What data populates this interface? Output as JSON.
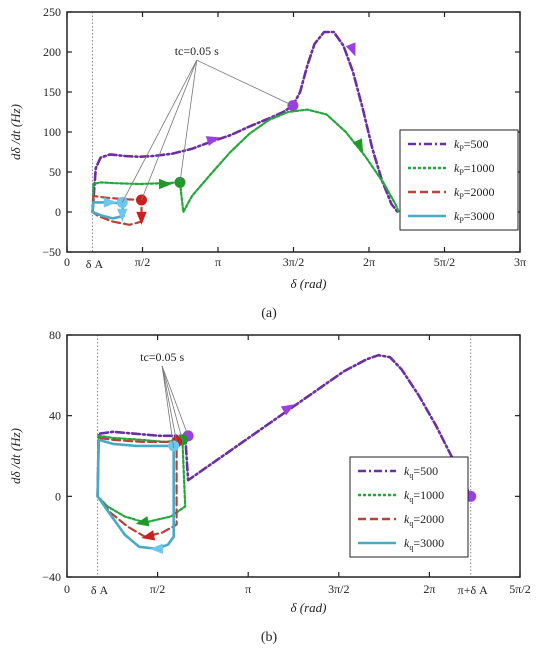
{
  "colors": {
    "k500": "#6a2fa0",
    "k1000": "#22a83a",
    "k2000": "#b5453a",
    "k3000": "#4aaac4",
    "k500_marker": "#9a40e0",
    "k1000_marker": "#1e9a2a",
    "k2000_marker": "#cc1f1f",
    "k3000_marker": "#6cc6ee",
    "guide": "#888888"
  },
  "chart_data": [
    {
      "panel": "(a)",
      "type": "line",
      "ylabel": "dδ /dt (Hz)",
      "xlabel": "δ  (rad)",
      "xlim": [
        0,
        9.42478
      ],
      "ylim": [
        -50,
        250
      ],
      "xticks": [
        {
          "value": 0,
          "label": "0"
        },
        {
          "value": 1.5708,
          "label": "π/2"
        },
        {
          "value": 3.14159,
          "label": "π"
        },
        {
          "value": 4.71239,
          "label": "3π/2"
        },
        {
          "value": 6.28319,
          "label": "2π"
        },
        {
          "value": 7.85398,
          "label": "5π/2"
        },
        {
          "value": 9.42478,
          "label": "3π"
        }
      ],
      "yticks": [
        -50,
        0,
        50,
        100,
        150,
        200,
        250
      ],
      "vline": {
        "x": 0.53,
        "label": "δ A"
      },
      "annotation": {
        "text": "tc=0.05 s",
        "anchor": {
          "x": 2.7,
          "y": 196
        },
        "targets": [
          {
            "x": 1.15,
            "y": 12
          },
          {
            "x": 1.55,
            "y": 15
          },
          {
            "x": 2.35,
            "y": 37
          },
          {
            "x": 4.7,
            "y": 133
          }
        ]
      },
      "legend": {
        "position": "right",
        "entries": [
          {
            "prefix": "k",
            "sub": "P",
            "suffix": "=500",
            "series": "k500",
            "dash": "8,3,2,3"
          },
          {
            "prefix": "k",
            "sub": "P",
            "suffix": "=1000",
            "series": "k1000",
            "dash": "3,2"
          },
          {
            "prefix": "k",
            "sub": "P",
            "suffix": "=2000",
            "series": "k2000",
            "dash": "8,4"
          },
          {
            "prefix": "k",
            "sub": "P",
            "suffix": "=3000",
            "series": "k3000",
            "dash": ""
          }
        ]
      },
      "series": [
        {
          "key": "k500",
          "width": 2.6,
          "points": [
            [
              0.53,
              0
            ],
            [
              0.6,
              55
            ],
            [
              0.7,
              68
            ],
            [
              0.9,
              72
            ],
            [
              1.2,
              70
            ],
            [
              1.5,
              69
            ],
            [
              1.8,
              70
            ],
            [
              2.2,
              73
            ],
            [
              2.6,
              79
            ],
            [
              3.0,
              88
            ],
            [
              3.4,
              96
            ],
            [
              3.8,
              107
            ],
            [
              4.2,
              117
            ],
            [
              4.5,
              125
            ],
            [
              4.7,
              133
            ],
            [
              4.85,
              150
            ],
            [
              5.0,
              183
            ],
            [
              5.15,
              210
            ],
            [
              5.35,
              225
            ],
            [
              5.55,
              225
            ],
            [
              5.75,
              208
            ],
            [
              5.95,
              175
            ],
            [
              6.15,
              130
            ],
            [
              6.35,
              80
            ],
            [
              6.55,
              40
            ],
            [
              6.75,
              10
            ],
            [
              6.88,
              0
            ]
          ],
          "markers": [
            [
              4.7,
              133
            ]
          ],
          "arrows": [
            [
              3.05,
              91,
              1,
              0.3
            ],
            [
              5.95,
              202,
              0.4,
              -1
            ]
          ]
        },
        {
          "key": "k1000",
          "width": 2.2,
          "points": [
            [
              0.53,
              0
            ],
            [
              0.55,
              35
            ],
            [
              0.7,
              37
            ],
            [
              1.0,
              36
            ],
            [
              1.5,
              35
            ],
            [
              2.0,
              36
            ],
            [
              2.35,
              37
            ],
            [
              2.4,
              10
            ],
            [
              2.42,
              0
            ],
            [
              2.6,
              20
            ],
            [
              3.0,
              48
            ],
            [
              3.4,
              75
            ],
            [
              3.8,
              98
            ],
            [
              4.2,
              115
            ],
            [
              4.6,
              125
            ],
            [
              5.0,
              128
            ],
            [
              5.4,
              122
            ],
            [
              5.8,
              100
            ],
            [
              6.2,
              70
            ],
            [
              6.6,
              35
            ],
            [
              6.85,
              8
            ],
            [
              6.9,
              0
            ]
          ],
          "markers": [
            [
              2.35,
              37
            ]
          ],
          "arrows": [
            [
              2.05,
              35,
              1,
              0
            ],
            [
              6.1,
              82,
              0.5,
              -1
            ]
          ]
        },
        {
          "key": "k2000",
          "width": 2.2,
          "points": [
            [
              0.53,
              0
            ],
            [
              0.55,
              20
            ],
            [
              0.8,
              18
            ],
            [
              1.2,
              16
            ],
            [
              1.55,
              15
            ],
            [
              1.55,
              -12
            ],
            [
              1.3,
              -16
            ],
            [
              0.95,
              -12
            ],
            [
              0.65,
              -5
            ],
            [
              0.53,
              0
            ]
          ],
          "markers": [
            [
              1.55,
              15
            ]
          ],
          "arrows": [
            [
              1.55,
              -8,
              0,
              -1
            ]
          ]
        },
        {
          "key": "k3000",
          "width": 2.6,
          "points": [
            [
              0.53,
              0
            ],
            [
              0.55,
              12
            ],
            [
              0.8,
              12
            ],
            [
              1.15,
              11
            ],
            [
              1.18,
              -5
            ],
            [
              0.95,
              -8
            ],
            [
              0.7,
              -4
            ],
            [
              0.53,
              0
            ]
          ],
          "markers": [
            [
              1.15,
              12
            ]
          ],
          "arrows": [
            [
              0.9,
              12,
              1,
              0
            ],
            [
              1.15,
              -4,
              0,
              -1
            ]
          ]
        }
      ]
    },
    {
      "panel": "(b)",
      "type": "line",
      "ylabel": "dδ /dt (Hz)",
      "xlabel": "δ   (rad)",
      "xlim": [
        0,
        7.85398
      ],
      "ylim": [
        -40,
        80
      ],
      "xticks": [
        {
          "value": 0,
          "label": "0"
        },
        {
          "value": 1.5708,
          "label": "π/2"
        },
        {
          "value": 3.14159,
          "label": "π"
        },
        {
          "value": 4.71239,
          "label": "3π/2"
        },
        {
          "value": 6.28319,
          "label": "2π"
        },
        {
          "value": 7.85398,
          "label": "5π/2"
        }
      ],
      "yticks": [
        -40,
        0,
        40,
        80
      ],
      "vlines": [
        {
          "x": 0.53,
          "label": "δ A"
        },
        {
          "x": 7.0,
          "label": "π+δ A"
        }
      ],
      "annotation": {
        "text": "tc=0.05 s",
        "anchor": {
          "x": 1.65,
          "y": 67
        },
        "targets": [
          {
            "x": 1.85,
            "y": 24
          },
          {
            "x": 1.9,
            "y": 27
          },
          {
            "x": 2.0,
            "y": 28
          },
          {
            "x": 2.1,
            "y": 30
          }
        ]
      },
      "legend": {
        "position": "right",
        "entries": [
          {
            "prefix": "k",
            "sub": "q",
            "suffix": "=500",
            "series": "k500",
            "dash": "8,3,2,3"
          },
          {
            "prefix": "k",
            "sub": "q",
            "suffix": "=1000",
            "series": "k1000",
            "dash": "3,2"
          },
          {
            "prefix": "k",
            "sub": "q",
            "suffix": "=2000",
            "series": "k2000",
            "dash": "8,4"
          },
          {
            "prefix": "k",
            "sub": "q",
            "suffix": "=3000",
            "series": "k3000",
            "dash": ""
          }
        ]
      },
      "series": [
        {
          "key": "k500",
          "width": 2.6,
          "points": [
            [
              0.53,
              0
            ],
            [
              0.55,
              31
            ],
            [
              0.8,
              32
            ],
            [
              1.2,
              31
            ],
            [
              1.6,
              30
            ],
            [
              2.05,
              30
            ],
            [
              2.1,
              8
            ],
            [
              2.4,
              14
            ],
            [
              2.8,
              22
            ],
            [
              3.2,
              30
            ],
            [
              3.6,
              38
            ],
            [
              4.0,
              46
            ],
            [
              4.4,
              54
            ],
            [
              4.8,
              62
            ],
            [
              5.2,
              68
            ],
            [
              5.4,
              70
            ],
            [
              5.6,
              69
            ],
            [
              5.8,
              63
            ],
            [
              6.1,
              50
            ],
            [
              6.4,
              35
            ],
            [
              6.7,
              18
            ],
            [
              7.0,
              0
            ]
          ],
          "markers": [
            [
              2.1,
              30
            ],
            [
              7.0,
              0
            ]
          ],
          "arrows": [
            [
              3.85,
              44,
              1,
              0.6
            ]
          ]
        },
        {
          "key": "k1000",
          "width": 2.2,
          "points": [
            [
              0.53,
              0
            ],
            [
              0.55,
              30
            ],
            [
              0.8,
              29
            ],
            [
              1.3,
              28
            ],
            [
              1.7,
              27
            ],
            [
              2.0,
              28
            ],
            [
              2.05,
              -5
            ],
            [
              1.8,
              -10
            ],
            [
              1.35,
              -13
            ],
            [
              1.0,
              -10
            ],
            [
              0.7,
              -5
            ],
            [
              0.53,
              0
            ]
          ],
          "markers": [
            [
              2.0,
              28
            ]
          ],
          "arrows": [
            [
              1.3,
              -13,
              -1,
              -0.2
            ]
          ]
        },
        {
          "key": "k2000",
          "width": 2.2,
          "points": [
            [
              0.53,
              0
            ],
            [
              0.55,
              29
            ],
            [
              0.8,
              28
            ],
            [
              1.3,
              27
            ],
            [
              1.9,
              27
            ],
            [
              1.9,
              -14
            ],
            [
              1.65,
              -18
            ],
            [
              1.35,
              -20
            ],
            [
              1.05,
              -15
            ],
            [
              0.75,
              -8
            ],
            [
              0.53,
              0
            ]
          ],
          "markers": [
            [
              1.9,
              27
            ]
          ],
          "arrows": [
            [
              1.4,
              -20,
              -1,
              -0.2
            ]
          ]
        },
        {
          "key": "k3000",
          "width": 2.6,
          "points": [
            [
              0.53,
              0
            ],
            [
              0.55,
              28
            ],
            [
              0.8,
              26
            ],
            [
              1.2,
              25
            ],
            [
              1.5,
              25
            ],
            [
              1.85,
              25
            ],
            [
              1.85,
              -20
            ],
            [
              1.75,
              -24
            ],
            [
              1.55,
              -26
            ],
            [
              1.25,
              -25
            ],
            [
              1.0,
              -19
            ],
            [
              0.75,
              -9
            ],
            [
              0.53,
              0
            ]
          ],
          "markers": [
            [
              1.85,
              25
            ]
          ],
          "arrows": [
            [
              1.55,
              -26,
              -1,
              0
            ]
          ]
        }
      ]
    }
  ]
}
